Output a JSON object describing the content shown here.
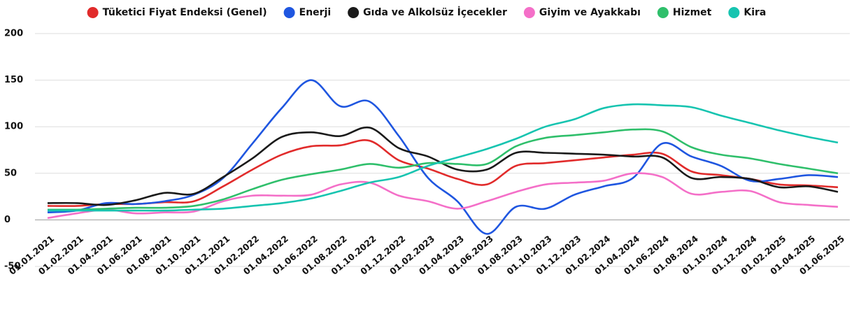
{
  "chart_data": {
    "type": "line",
    "categories": [
      "01.01.2021",
      "01.02.2021",
      "01.04.2021",
      "01.06.2021",
      "01.08.2021",
      "01.10.2021",
      "01.12.2021",
      "01.02.2022",
      "01.04.2022",
      "01.06.2022",
      "01.08.2022",
      "01.10.2022",
      "01.12.2022",
      "01.02.2023",
      "01.04.2023",
      "01.06.2023",
      "01.08.2023",
      "01.10.2023",
      "01.12.2023",
      "01.02.2024",
      "01.04.2024",
      "01.06.2024",
      "01.08.2024",
      "01.10.2024",
      "01.12.2024",
      "01.02.2025",
      "01.04.2025",
      "01.06.2025"
    ],
    "series": [
      {
        "name": "Tüketici Fiyat Endeksi (Genel)",
        "color": "#e12b2b",
        "values": [
          15,
          15,
          17,
          17,
          19,
          20,
          36,
          54,
          70,
          79,
          80,
          85,
          64,
          55,
          44,
          38,
          58,
          61,
          64,
          67,
          70,
          71,
          52,
          48,
          44,
          38,
          37,
          35
        ]
      },
      {
        "name": "Enerji",
        "color": "#1f56e0",
        "values": [
          8,
          10,
          18,
          17,
          20,
          27,
          45,
          82,
          120,
          150,
          122,
          127,
          90,
          45,
          20,
          -15,
          14,
          12,
          27,
          36,
          45,
          82,
          68,
          58,
          42,
          44,
          48,
          46
        ]
      },
      {
        "name": "Gıda ve Alkolsüz İçecekler",
        "color": "#1a1a1a",
        "values": [
          18,
          18,
          16,
          21,
          29,
          28,
          46,
          66,
          89,
          94,
          90,
          99,
          77,
          68,
          54,
          54,
          72,
          72,
          71,
          70,
          68,
          67,
          45,
          46,
          44,
          35,
          36,
          30
        ]
      },
      {
        "name": "Giyim ve Ayakkabı",
        "color": "#f46fc8",
        "values": [
          2,
          7,
          11,
          7,
          8,
          9,
          20,
          26,
          26,
          27,
          38,
          40,
          26,
          20,
          12,
          20,
          30,
          38,
          40,
          42,
          50,
          46,
          28,
          30,
          31,
          19,
          16,
          14
        ]
      },
      {
        "name": "Hizmet",
        "color": "#2fbf6b",
        "values": [
          11,
          11,
          12,
          13,
          13,
          15,
          22,
          33,
          43,
          49,
          54,
          60,
          56,
          61,
          60,
          60,
          79,
          88,
          91,
          94,
          97,
          95,
          78,
          70,
          66,
          60,
          55,
          50
        ]
      },
      {
        "name": "Kira",
        "color": "#17c4b0",
        "values": [
          10,
          10,
          10,
          10,
          10,
          11,
          12,
          15,
          18,
          23,
          31,
          40,
          46,
          58,
          67,
          76,
          87,
          100,
          108,
          120,
          124,
          123,
          121,
          112,
          104,
          96,
          89,
          83
        ]
      }
    ],
    "ylim": [
      -50,
      200
    ],
    "yticks": [
      -50,
      0,
      50,
      100,
      150,
      200
    ],
    "grid": true,
    "legend": "top"
  }
}
